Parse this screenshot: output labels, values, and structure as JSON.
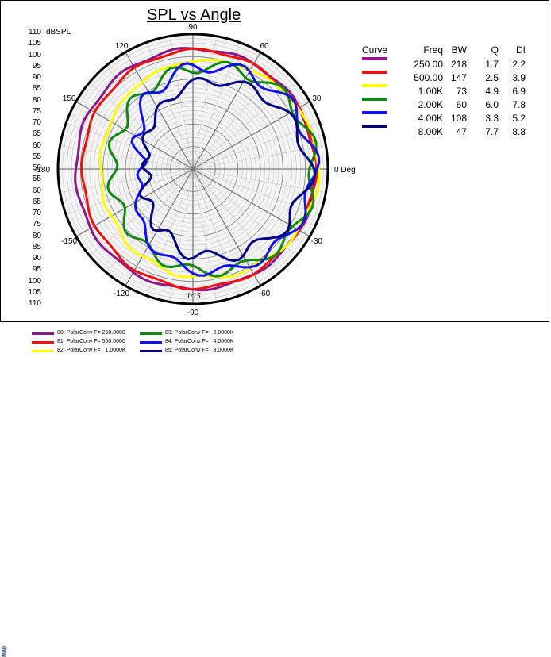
{
  "chart_data": {
    "type": "polar-line",
    "title": "SPL vs Angle",
    "radial_label": "dBSPL",
    "radial_ticks_upper": [
      "110",
      "105",
      "100",
      "95",
      "90",
      "85",
      "80",
      "75",
      "70",
      "65",
      "60",
      "55",
      "50"
    ],
    "radial_ticks_lower": [
      "55",
      "60",
      "65",
      "70",
      "75",
      "80",
      "85",
      "90",
      "95",
      "100",
      "105",
      "110"
    ],
    "rlim": [
      50,
      110
    ],
    "angle_labels": [
      {
        "deg": 90,
        "text": "90"
      },
      {
        "deg": 60,
        "text": "60"
      },
      {
        "deg": 30,
        "text": "30"
      },
      {
        "deg": 0,
        "text": "0 Deg"
      },
      {
        "deg": -30,
        "text": "-30"
      },
      {
        "deg": -60,
        "text": "-60"
      },
      {
        "deg": -90,
        "text": "-90"
      },
      {
        "deg": -120,
        "text": "-120"
      },
      {
        "deg": -150,
        "text": "-150"
      },
      {
        "deg": 180,
        "text": "-180"
      },
      {
        "deg": 150,
        "text": "150"
      },
      {
        "deg": 120,
        "text": "120"
      }
    ],
    "annotation": "1/15",
    "table": {
      "headers": [
        "Curve",
        "Freq",
        "BW",
        "Q",
        "DI"
      ],
      "rows": [
        {
          "color": "#8a1a8a",
          "freq": "250.00",
          "bw": "218",
          "q": "1.7",
          "di": "2.2"
        },
        {
          "color": "#ee1111",
          "freq": "500.00",
          "bw": "147",
          "q": "2.5",
          "di": "3.9"
        },
        {
          "color": "#ffff00",
          "freq": "1.00K",
          "bw": "73",
          "q": "4.9",
          "di": "6.9"
        },
        {
          "color": "#118811",
          "freq": "2.00K",
          "bw": "60",
          "q": "6.0",
          "di": "7.8"
        },
        {
          "color": "#1111ee",
          "freq": "4.00K",
          "bw": "108",
          "q": "3.3",
          "di": "5.2"
        },
        {
          "color": "#000080",
          "freq": "8.00K",
          "bw": "47",
          "q": "7.7",
          "di": "8.8"
        }
      ]
    },
    "series": [
      {
        "color": "#8a1a8a",
        "angles": [
          0,
          30,
          60,
          90,
          120,
          150,
          180,
          -150,
          -120,
          -90,
          -60,
          -30
        ],
        "values": [
          104.8,
          104.5,
          104,
          103.5,
          103,
          102.5,
          102,
          102.5,
          103,
          103.5,
          104,
          104.5
        ]
      },
      {
        "color": "#ee1111",
        "angles": [
          0,
          30,
          60,
          90,
          120,
          150,
          180,
          -150,
          -120,
          -90,
          -60,
          -30
        ],
        "values": [
          104.5,
          104,
          103.5,
          103,
          101.5,
          100,
          99,
          100,
          101.5,
          103,
          103.5,
          104
        ]
      },
      {
        "color": "#ffff00",
        "angles": [
          0,
          30,
          60,
          90,
          120,
          150,
          180,
          -150,
          -120,
          -90,
          -60,
          -30
        ],
        "values": [
          106,
          104,
          101,
          98,
          95,
          92,
          91,
          92,
          95,
          98,
          101,
          104
        ]
      },
      {
        "color": "#118811",
        "angles": [
          0,
          30,
          60,
          90,
          120,
          150,
          180,
          -150,
          -120,
          -90,
          -60,
          -30
        ],
        "values": [
          104,
          103,
          99,
          95,
          91,
          87,
          86,
          87,
          91,
          95,
          99,
          103
        ]
      },
      {
        "color": "#1111ee",
        "angles": [
          0,
          30,
          60,
          90,
          120,
          150,
          180,
          -150,
          -120,
          -90,
          -60,
          -30
        ],
        "values": [
          104,
          102,
          99,
          95,
          88,
          78,
          72,
          78,
          88,
          95,
          99,
          102
        ]
      },
      {
        "color": "#000080",
        "angles": [
          0,
          30,
          60,
          90,
          120,
          150,
          180,
          -150,
          -120,
          -90,
          -60,
          -30
        ],
        "values": [
          102,
          98,
          93,
          88,
          80,
          74,
          70,
          74,
          80,
          88,
          93,
          98
        ]
      }
    ]
  },
  "footer": {
    "map_label": "Map",
    "legend": [
      {
        "color": "#8a1a8a",
        "text": "80: PolarConv F= 250.0000"
      },
      {
        "color": "#ee1111",
        "text": "81: PolarConv F= 500.0000"
      },
      {
        "color": "#ffff00",
        "text": "82: PolarConv F=   1.0000K"
      },
      {
        "color": "#118811",
        "text": "83: PolarConv F=   2.0000K"
      },
      {
        "color": "#1111ee",
        "text": "84: PolarConv F=   4.0000K"
      },
      {
        "color": "#000080",
        "text": "85: PolarConv F=   8.0000K"
      }
    ]
  }
}
